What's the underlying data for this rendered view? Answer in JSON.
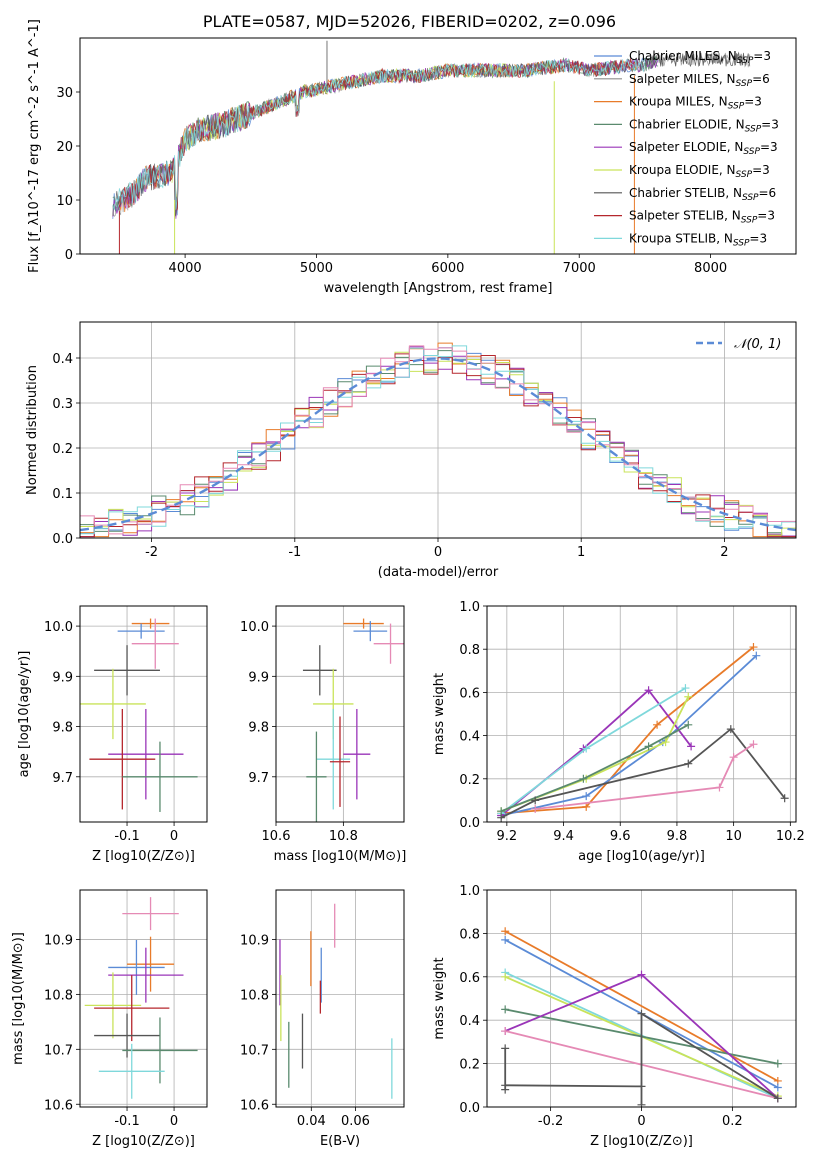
{
  "figure_title": "PLATE=0587, MJD=52026, FIBERID=0202, z=0.096",
  "colors": {
    "Chabrier MILES": "#5b8bd6",
    "Salpeter MILES": "#8e8e8e",
    "Kroupa MILES": "#e87b2a",
    "Chabrier ELODIE": "#5a8a6e",
    "Salpeter ELODIE": "#9a35b8",
    "Kroupa ELODIE": "#c9e35a",
    "Chabrier STELIB": "#555555",
    "Salpeter STELIB": "#b5272d",
    "Kroupa STELIB": "#7fd8db",
    "pink": "#e58ab5",
    "normal": "#5b8bd6"
  },
  "chart_data": [
    {
      "type": "line",
      "panel": "spectrum",
      "xlabel": "wavelength [Angstrom, rest frame]",
      "ylabel": "Flux [f_λ10^-17 erg cm^-2 s^-1 A^-1]",
      "xlim": [
        3200,
        8650
      ],
      "ylim": [
        0,
        40
      ],
      "xticks": [
        4000,
        5000,
        6000,
        7000,
        8000
      ],
      "yticks": [
        0,
        10,
        20,
        30
      ],
      "legend": [
        "Chabrier MILES, N_SSP=3",
        "Salpeter MILES, N_SSP=6",
        "Kroupa MILES, N_SSP=3",
        "Chabrier ELODIE, N_SSP=3",
        "Salpeter ELODIE, N_SSP=3",
        "Kroupa ELODIE, N_SSP=3",
        "Chabrier STELIB, N_SSP=6",
        "Salpeter STELIB, N_SSP=3",
        "Kroupa STELIB, N_SSP=3"
      ],
      "legend_position": "top-right",
      "x": [
        3450,
        3600,
        3700,
        3900,
        4000,
        4100,
        4300,
        4500,
        4700,
        4900,
        5100,
        5300,
        5500,
        5800,
        6000,
        6300,
        6600,
        6900,
        7100,
        7400,
        7500,
        7600
      ],
      "y": [
        9,
        11,
        14,
        15,
        21,
        23,
        24,
        26,
        28,
        30,
        31,
        32,
        33,
        33,
        34,
        34,
        34,
        35,
        34,
        35,
        35,
        36
      ]
    },
    {
      "type": "line",
      "panel": "residual-histogram",
      "xlabel": "(data-model)/error",
      "ylabel": "Normed distribution",
      "xlim": [
        -2.5,
        2.5
      ],
      "ylim": [
        0,
        0.48
      ],
      "xticks": [
        -2,
        -1,
        0,
        1,
        2
      ],
      "yticks": [
        0.0,
        0.1,
        0.2,
        0.3,
        0.4
      ],
      "legend": [
        "𝒩(0, 1)"
      ],
      "legend_position": "top-right",
      "grid": true
    },
    {
      "type": "scatter",
      "panel": "age-vs-Z",
      "xlabel": "Z [log10(Z/Z⊙)]",
      "ylabel": "age [log10(age/yr)]",
      "xlim": [
        -0.2,
        0.07
      ],
      "ylim": [
        9.61,
        10.04
      ],
      "xticks": [
        -0.1,
        0.0
      ],
      "yticks": [
        9.7,
        9.8,
        9.9,
        10.0
      ],
      "grid": true,
      "points": [
        {
          "x": -0.05,
          "y": 10.005,
          "xerr": 0.04,
          "yerr": 0.01,
          "color": "#e87b2a"
        },
        {
          "x": -0.07,
          "y": 9.99,
          "xerr": 0.05,
          "yerr": 0.015,
          "color": "#5b8bd6"
        },
        {
          "x": -0.04,
          "y": 9.965,
          "xerr": 0.05,
          "yerr": 0.05,
          "color": "#e58ab5"
        },
        {
          "x": -0.1,
          "y": 9.912,
          "xerr": 0.07,
          "yerr": 0.05,
          "color": "#555555"
        },
        {
          "x": -0.13,
          "y": 9.845,
          "xerr": 0.07,
          "yerr": 0.07,
          "color": "#c9e35a"
        },
        {
          "x": -0.06,
          "y": 9.745,
          "xerr": 0.08,
          "yerr": 0.09,
          "color": "#9a35b8"
        },
        {
          "x": -0.11,
          "y": 9.735,
          "xerr": 0.07,
          "yerr": 0.1,
          "color": "#b5272d"
        },
        {
          "x": -0.03,
          "y": 9.7,
          "xerr": 0.08,
          "yerr": 0.07,
          "color": "#5a8a6e"
        }
      ]
    },
    {
      "type": "scatter",
      "panel": "age-vs-mass",
      "xlabel": "mass [log10(M/M⊙)]",
      "ylabel": "",
      "xlim": [
        10.6,
        10.98
      ],
      "ylim": [
        9.61,
        10.04
      ],
      "xticks": [
        10.6,
        10.8
      ],
      "yticks": [
        9.7,
        9.8,
        9.9,
        10.0
      ],
      "grid": true
    },
    {
      "type": "line",
      "panel": "mass-weight-vs-age",
      "xlabel": "age [log10(age/yr)]",
      "ylabel": "mass weight",
      "xlim": [
        9.13,
        10.22
      ],
      "ylim": [
        0,
        1
      ],
      "xticks": [
        9.2,
        9.4,
        9.6,
        9.8,
        10.0,
        10.2
      ],
      "yticks": [
        0.0,
        0.2,
        0.4,
        0.6,
        0.8,
        1.0
      ],
      "grid": true,
      "series": [
        {
          "color": "#e87b2a",
          "x": [
            9.18,
            9.48,
            9.73,
            10.07
          ],
          "y": [
            0.04,
            0.07,
            0.45,
            0.81
          ]
        },
        {
          "color": "#5b8bd6",
          "x": [
            9.18,
            9.48,
            9.75,
            10.08
          ],
          "y": [
            0.03,
            0.12,
            0.37,
            0.77
          ]
        },
        {
          "color": "#9a35b8",
          "x": [
            9.18,
            9.47,
            9.7,
            9.85
          ],
          "y": [
            0.03,
            0.34,
            0.61,
            0.35
          ]
        },
        {
          "color": "#7fd8db",
          "x": [
            9.18,
            9.48,
            9.83
          ],
          "y": [
            0.04,
            0.34,
            0.62
          ]
        },
        {
          "color": "#c9e35a",
          "x": [
            9.18,
            9.48,
            9.76,
            9.84
          ],
          "y": [
            0.05,
            0.2,
            0.37,
            0.58
          ]
        },
        {
          "color": "#5a8a6e",
          "x": [
            9.18,
            9.47,
            9.7,
            9.84
          ],
          "y": [
            0.05,
            0.2,
            0.35,
            0.45
          ]
        },
        {
          "color": "#555555",
          "x": [
            9.18,
            9.3,
            9.84,
            9.99,
            10.18
          ],
          "y": [
            0.02,
            0.1,
            0.27,
            0.43,
            0.11
          ]
        },
        {
          "color": "#e58ab5",
          "x": [
            9.3,
            9.95,
            10.0,
            10.07
          ],
          "y": [
            0.06,
            0.16,
            0.3,
            0.36
          ]
        }
      ]
    },
    {
      "type": "scatter",
      "panel": "mass-vs-Z",
      "xlabel": "Z [log10(Z/Z⊙)]",
      "ylabel": "mass [log10(M/M⊙)]",
      "xlim": [
        -0.2,
        0.07
      ],
      "ylim": [
        10.595,
        10.99
      ],
      "xticks": [
        -0.1,
        0.0
      ],
      "yticks": [
        10.6,
        10.7,
        10.8,
        10.9
      ],
      "grid": true
    },
    {
      "type": "scatter",
      "panel": "mass-vs-EBV",
      "xlabel": "E(B-V)",
      "ylabel": "",
      "xlim": [
        0.024,
        0.082
      ],
      "ylim": [
        10.595,
        10.99
      ],
      "xticks": [
        0.04,
        0.06
      ],
      "yticks": [
        10.6,
        10.7,
        10.8,
        10.9
      ],
      "grid": true
    },
    {
      "type": "line",
      "panel": "mass-weight-vs-Z",
      "xlabel": "Z [log10(Z/Z⊙)]",
      "ylabel": "mass weight",
      "xlim": [
        -0.34,
        0.34
      ],
      "ylim": [
        0,
        1
      ],
      "xticks": [
        -0.2,
        0.0,
        0.2
      ],
      "yticks": [
        0.0,
        0.2,
        0.4,
        0.6,
        0.8,
        1.0
      ],
      "grid": true
    }
  ]
}
